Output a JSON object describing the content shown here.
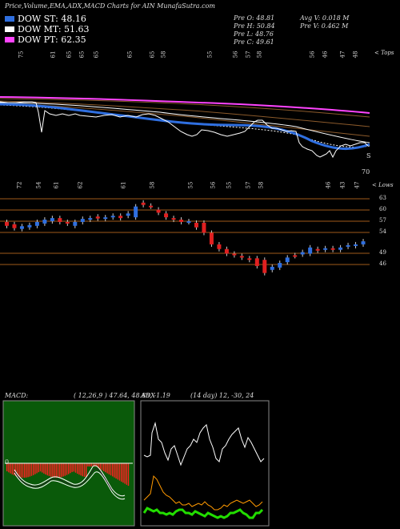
{
  "header": {
    "title": "Price,Volume,EMA,ADX,MACD Charts for AIN  MunafaSutra.com"
  },
  "legend": [
    {
      "label": "DOW ST: 48.16",
      "color": "#2f6fe0"
    },
    {
      "label": "DOW MT: 51.63",
      "color": "#ffffff"
    },
    {
      "label": "DOW PT: 62.35",
      "color": "#ff44ff"
    }
  ],
  "ohlc": {
    "open": "Pre  O: 48.81",
    "high": "Pre  H: 50.84",
    "low": "Pre  L: 48.76",
    "close": "Pre  C: 49.61",
    "avg_vol": "Avg V: 0.018  M",
    "pre_vol": "Pre  V: 0.462  M"
  },
  "top_panel": {
    "label_right": "< Tops",
    "rsi_marks": [
      "75",
      "61",
      "65",
      "65",
      "65",
      "65",
      "65",
      "58",
      "55",
      "56",
      "57",
      "58",
      "56",
      "46",
      "47",
      "48"
    ],
    "bottom_value": "70",
    "end_mark": "S"
  },
  "price_panel": {
    "label_right": "< Lows",
    "top_marks": [
      "72",
      "54",
      "61",
      "62",
      "61",
      "58",
      "55",
      "56",
      "55",
      "57",
      "58",
      "46",
      "43",
      "47"
    ],
    "levels": [
      "63",
      "60",
      "57",
      "54",
      "49",
      "46"
    ]
  },
  "macd_panel": {
    "title": "MACD:",
    "params": "( 12,26,9 ) 47.64,  48.88,  -1.19",
    "zero_label": "0"
  },
  "adx_panel": {
    "title": "ADX",
    "params": "(14  day) 12,  -30,  24"
  },
  "chart_data": {
    "type": "candlestick",
    "title": "Price,Volume,EMA,ADX,MACD Charts for AIN",
    "candles": [
      {
        "o": 57.0,
        "c": 56.0
      },
      {
        "o": 56.4,
        "c": 55.4
      },
      {
        "o": 55.2,
        "c": 55.9
      },
      {
        "o": 55.6,
        "c": 56.2
      },
      {
        "o": 56.0,
        "c": 57.0
      },
      {
        "o": 56.6,
        "c": 57.6
      },
      {
        "o": 57.2,
        "c": 58.0
      },
      {
        "o": 58.0,
        "c": 57.0
      },
      {
        "o": 57.0,
        "c": 56.6
      },
      {
        "o": 56.0,
        "c": 57.0
      },
      {
        "o": 57.0,
        "c": 57.8
      },
      {
        "o": 57.6,
        "c": 58.0
      },
      {
        "o": 58.4,
        "c": 57.9
      },
      {
        "o": 57.8,
        "c": 58.2
      },
      {
        "o": 58.2,
        "c": 58.6
      },
      {
        "o": 58.6,
        "c": 58.0
      },
      {
        "o": 58.6,
        "c": 59.2
      },
      {
        "o": 58.2,
        "c": 61.0
      },
      {
        "o": 62.0,
        "c": 61.4
      },
      {
        "o": 61.2,
        "c": 61.0
      },
      {
        "o": 60.2,
        "c": 59.4
      },
      {
        "o": 59.2,
        "c": 58.2
      },
      {
        "o": 58.0,
        "c": 57.6
      },
      {
        "o": 57.6,
        "c": 57.0
      },
      {
        "o": 57.0,
        "c": 57.2
      },
      {
        "o": 56.8,
        "c": 55.6
      },
      {
        "o": 56.8,
        "c": 54.2
      },
      {
        "o": 54.2,
        "c": 51.2
      },
      {
        "o": 51.2,
        "c": 50.0
      },
      {
        "o": 50.0,
        "c": 48.8
      },
      {
        "o": 48.8,
        "c": 48.4
      },
      {
        "o": 48.2,
        "c": 47.8
      },
      {
        "o": 47.6,
        "c": 47.2
      },
      {
        "o": 47.6,
        "c": 45.6
      },
      {
        "o": 47.2,
        "c": 43.8
      },
      {
        "o": 44.6,
        "c": 45.4
      },
      {
        "o": 45.2,
        "c": 46.4
      },
      {
        "o": 46.6,
        "c": 47.8
      },
      {
        "o": 48.4,
        "c": 48.2
      },
      {
        "o": 48.6,
        "c": 49.2
      },
      {
        "o": 48.8,
        "c": 50.4
      },
      {
        "o": 50.0,
        "c": 49.6
      },
      {
        "o": 49.8,
        "c": 50.2
      },
      {
        "o": 50.2,
        "c": 49.8
      },
      {
        "o": 49.8,
        "c": 50.4
      },
      {
        "o": 50.6,
        "c": 51.0
      },
      {
        "o": 50.8,
        "c": 51.2
      },
      {
        "o": 51.2,
        "c": 52.0
      }
    ],
    "price_levels": [
      63,
      60,
      57,
      54,
      49,
      46
    ]
  }
}
